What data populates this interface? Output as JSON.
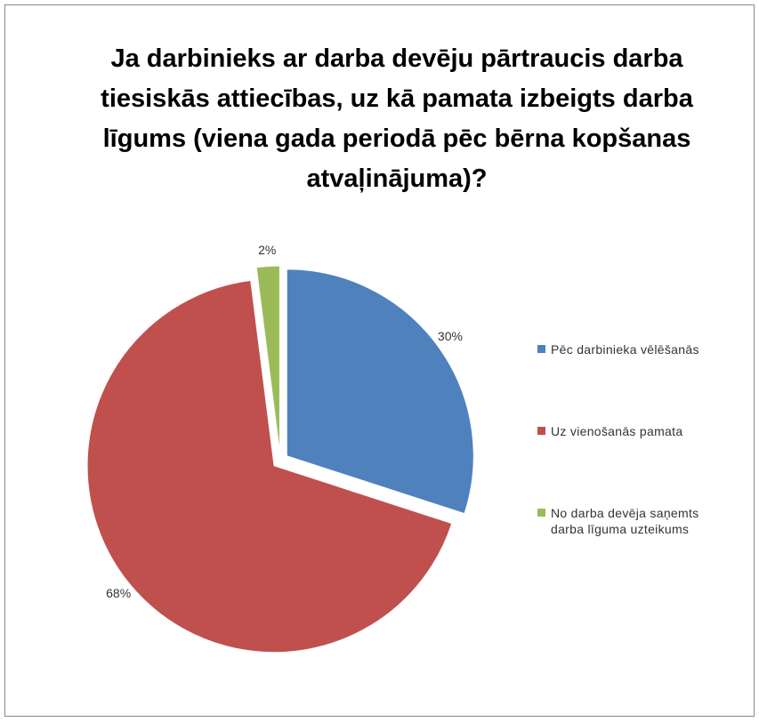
{
  "chart_data": {
    "type": "pie",
    "title": "Ja darbinieks ar darba devēju pārtraucis darba tiesiskās attiecības, uz kā pamata izbeigts darba līgums (viena gada periodā pēc bērna kopšanas atvaļinājuma)?",
    "categories": [
      "Pēc darbinieka vēlēšanās",
      "Uz vienošanās pamata",
      "No darba devēja saņemts darba līguma uzteikums"
    ],
    "values": [
      30,
      68,
      2
    ],
    "value_labels": [
      "30%",
      "68%",
      "2%"
    ],
    "colors": [
      "#4f81bd",
      "#c0504d",
      "#9bbb59"
    ],
    "legend": "right"
  }
}
